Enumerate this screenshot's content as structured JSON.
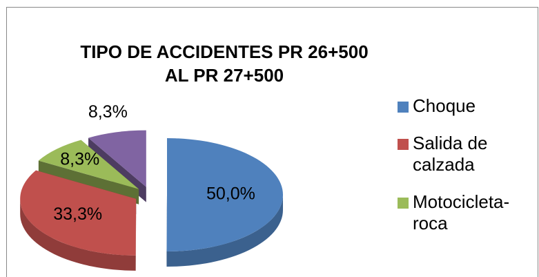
{
  "chart_data": {
    "type": "pie3d",
    "title": "TIPO DE ACCIDENTES  PR 26+500 AL PR 27+500",
    "categories": [
      "Choque",
      "Salida de calzada",
      "Motocicleta-roca",
      null
    ],
    "values": [
      50.0,
      33.3,
      8.3,
      8.3
    ],
    "value_labels": [
      "50,0%",
      "33,3%",
      "8,3%",
      "8,3%"
    ],
    "colors": [
      "#4f81bd",
      "#c0504d",
      "#9bbb59",
      "#8064a2"
    ],
    "legend": "right"
  }
}
